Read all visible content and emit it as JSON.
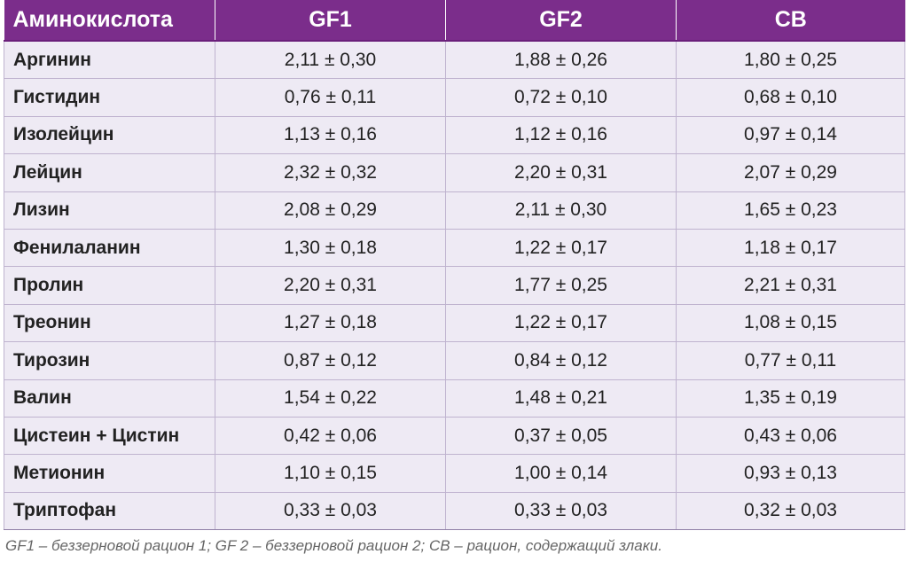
{
  "table": {
    "headers": [
      "Аминокислота",
      "GF1",
      "GF2",
      "CB"
    ],
    "rows": [
      [
        "Аргинин",
        "2,11 ± 0,30",
        "1,88 ± 0,26",
        "1,80 ± 0,25"
      ],
      [
        "Гистидин",
        "0,76 ± 0,11",
        "0,72 ± 0,10",
        "0,68 ± 0,10"
      ],
      [
        "Изолейцин",
        "1,13 ± 0,16",
        "1,12 ± 0,16",
        "0,97 ± 0,14"
      ],
      [
        "Лейцин",
        "2,32 ± 0,32",
        "2,20 ± 0,31",
        "2,07 ± 0,29"
      ],
      [
        "Лизин",
        "2,08 ± 0,29",
        "2,11 ± 0,30",
        "1,65 ± 0,23"
      ],
      [
        "Фенилаланин",
        "1,30 ± 0,18",
        "1,22 ± 0,17",
        "1,18 ± 0,17"
      ],
      [
        "Пролин",
        "2,20 ± 0,31",
        "1,77 ± 0,25",
        "2,21 ± 0,31"
      ],
      [
        "Треонин",
        "1,27 ± 0,18",
        "1,22 ± 0,17",
        "1,08 ± 0,15"
      ],
      [
        "Тирозин",
        "0,87 ± 0,12",
        "0,84 ± 0,12",
        "0,77 ± 0,11"
      ],
      [
        "Валин",
        "1,54 ± 0,22",
        "1,48 ± 0,21",
        "1,35 ± 0,19"
      ],
      [
        "Цистеин + Цистин",
        "0,42 ± 0,06",
        "0,37 ± 0,05",
        "0,43 ± 0,06"
      ],
      [
        "Метионин",
        "1,10 ± 0,15",
        "1,00 ± 0,14",
        "0,93 ± 0,13"
      ],
      [
        "Триптофан",
        "0,33 ± 0,03",
        "0,33 ± 0,03",
        "0,32 ± 0,03"
      ]
    ]
  },
  "footnote": "GF1 – беззерновой рацион 1; GF 2 – беззерновой рацион 2; CB – рацион, содержащий злаки.",
  "colors": {
    "header_bg": "#7b2d8b",
    "header_text": "#ffffff",
    "cell_bg": "#eeeaf4",
    "grid": "#bfb3cf"
  }
}
